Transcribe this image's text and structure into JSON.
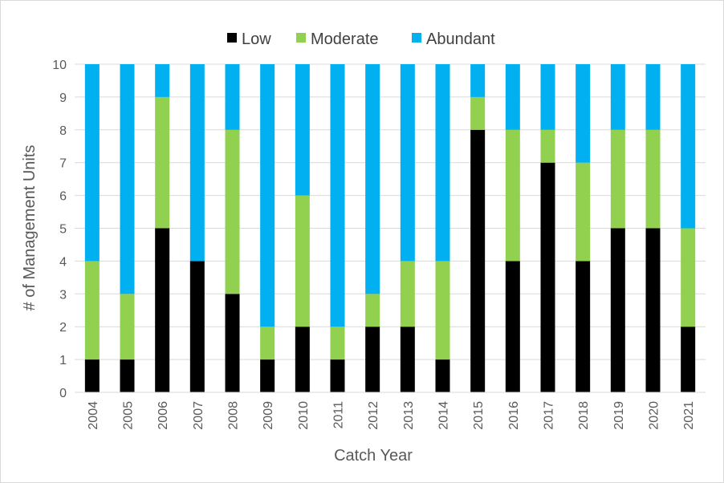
{
  "chart_data": {
    "type": "bar",
    "stacked": true,
    "categories": [
      "2004",
      "2005",
      "2006",
      "2007",
      "2008",
      "2009",
      "2010",
      "2011",
      "2012",
      "2013",
      "2014",
      "2015",
      "2016",
      "2017",
      "2018",
      "2019",
      "2020",
      "2021"
    ],
    "series": [
      {
        "name": "Low",
        "color": "#000000",
        "values": [
          1,
          1,
          5,
          4,
          3,
          1,
          2,
          1,
          2,
          2,
          1,
          8,
          4,
          7,
          4,
          5,
          5,
          2
        ]
      },
      {
        "name": "Moderate",
        "color": "#92d050",
        "values": [
          3,
          2,
          4,
          0,
          5,
          1,
          4,
          1,
          1,
          2,
          3,
          1,
          4,
          1,
          3,
          3,
          3,
          3
        ]
      },
      {
        "name": "Abundant",
        "color": "#00b0f0",
        "values": [
          6,
          7,
          1,
          6,
          2,
          8,
          4,
          8,
          7,
          6,
          6,
          1,
          2,
          2,
          3,
          2,
          2,
          5
        ]
      }
    ],
    "xlabel": "Catch Year",
    "ylabel": "# of Management Units",
    "ylim": [
      0,
      10
    ],
    "yticks": [
      "0",
      "1",
      "2",
      "3",
      "4",
      "5",
      "6",
      "7",
      "8",
      "9",
      "10"
    ],
    "grid": true,
    "legend_position": "top"
  }
}
